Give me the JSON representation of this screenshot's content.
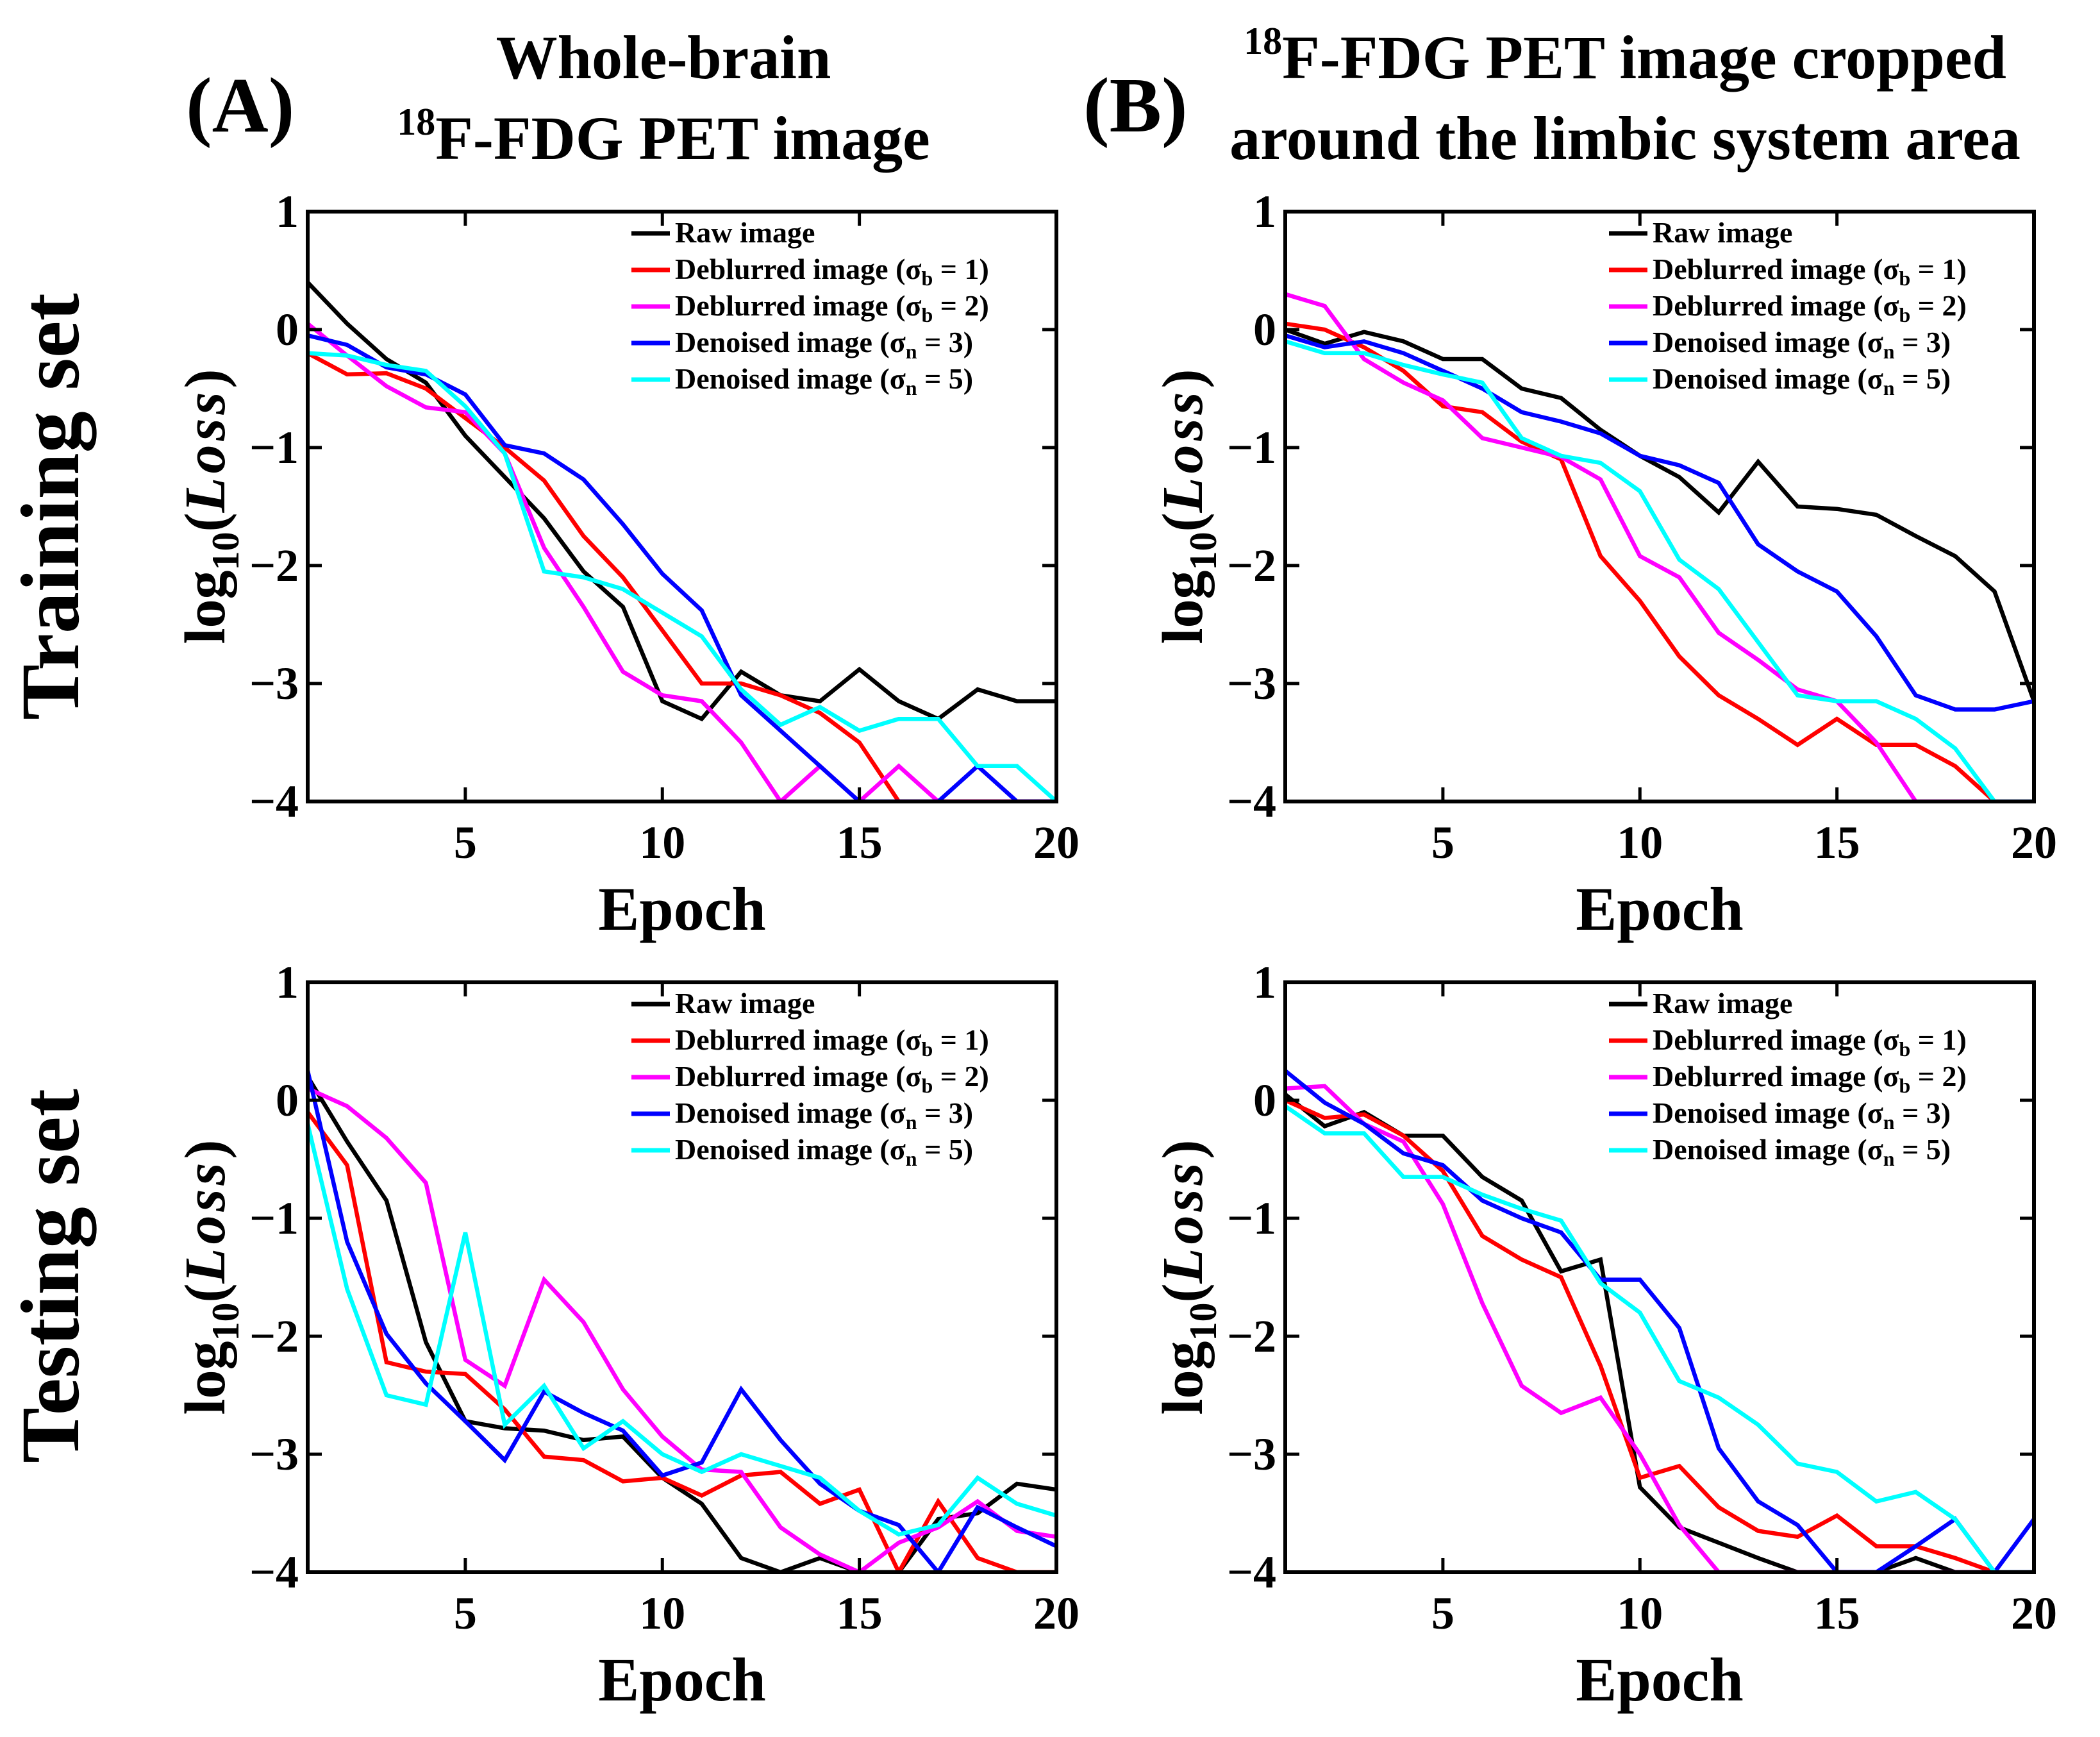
{
  "labels": {
    "panel_a": "(A)",
    "panel_b": "(B)",
    "col_a_line1": "Whole-brain",
    "col_a_sup": "18",
    "col_a_line2": "F-FDG PET image",
    "col_b_sup": "18",
    "col_b_line1": "F-FDG PET image cropped",
    "col_b_line2": "around the limbic system area",
    "row_training": "Training set",
    "row_testing": "Testing set"
  },
  "series_styles": [
    {
      "name": "Raw image",
      "color": "#000000"
    },
    {
      "name": "Deblurred image",
      "color": "#ff0000"
    },
    {
      "name": "Deblurred image",
      "color": "#ff00ff"
    },
    {
      "name": "Denoised image",
      "color": "#0000ff"
    },
    {
      "name": "Denoised image",
      "color": "#00ffff"
    }
  ],
  "chart_data": [
    {
      "id": "A-training",
      "type": "line",
      "title": "",
      "xlabel": "Epoch",
      "ylabel": "log10(Loss)",
      "xlim": [
        1,
        20
      ],
      "ylim": [
        -4,
        1
      ],
      "xticks": [
        5,
        10,
        15,
        20
      ],
      "yticks": [
        1,
        0,
        -1,
        -2,
        -3,
        -4
      ],
      "legend": [
        {
          "text": "Raw image",
          "sym": "",
          "sub": "",
          "suffix": ""
        },
        {
          "text": "Deblurred image (",
          "sym": "σ",
          "sub": "b",
          "suffix": " = 1)"
        },
        {
          "text": "Deblurred image (",
          "sym": "σ",
          "sub": "b",
          "suffix": " = 2)"
        },
        {
          "text": "Denoised image (",
          "sym": "σ",
          "sub": "n",
          "suffix": " = 3)"
        },
        {
          "text": "Denoised image (",
          "sym": "σ",
          "sub": "n",
          "suffix": " = 5)"
        }
      ],
      "x": [
        1,
        2,
        3,
        4,
        5,
        6,
        7,
        8,
        9,
        10,
        11,
        12,
        13,
        14,
        15,
        16,
        17,
        18,
        19,
        20
      ],
      "series": [
        {
          "name": "Raw image",
          "values": [
            0.4,
            0.05,
            -0.25,
            -0.45,
            -0.9,
            -1.25,
            -1.6,
            -2.05,
            -2.35,
            -3.15,
            -3.3,
            -2.9,
            -3.1,
            -3.15,
            -2.88,
            -3.15,
            -3.3,
            -3.05,
            -3.15,
            -3.15
          ]
        },
        {
          "name": "Deblurred image (σb = 1)",
          "values": [
            -0.2,
            -0.38,
            -0.37,
            -0.5,
            -0.75,
            -1.0,
            -1.28,
            -1.75,
            -2.1,
            -2.55,
            -3.0,
            -3.0,
            -3.1,
            -3.25,
            -3.5,
            -4.0,
            -4.0,
            -4.0,
            -4.0,
            -4.0
          ]
        },
        {
          "name": "Deblurred image (σb = 2)",
          "values": [
            0.05,
            -0.22,
            -0.48,
            -0.66,
            -0.7,
            -1.05,
            -1.85,
            -2.35,
            -2.9,
            -3.1,
            -3.15,
            -3.5,
            -4.0,
            -3.7,
            -4.0,
            -3.7,
            -4.0,
            -4.0,
            -4.0,
            -4.0
          ]
        },
        {
          "name": "Denoised image (σn = 3)",
          "values": [
            -0.05,
            -0.13,
            -0.32,
            -0.38,
            -0.55,
            -0.98,
            -1.05,
            -1.27,
            -1.65,
            -2.07,
            -2.38,
            -3.1,
            -3.4,
            -3.7,
            -4.0,
            -4.0,
            -4.0,
            -3.7,
            -4.0,
            -4.0
          ]
        },
        {
          "name": "Denoised image (σn = 5)",
          "values": [
            -0.2,
            -0.22,
            -0.3,
            -0.35,
            -0.65,
            -1.05,
            -2.05,
            -2.1,
            -2.2,
            -2.4,
            -2.6,
            -3.05,
            -3.35,
            -3.2,
            -3.4,
            -3.3,
            -3.3,
            -3.7,
            -3.7,
            -4.0
          ]
        }
      ]
    },
    {
      "id": "B-training",
      "type": "line",
      "title": "",
      "xlabel": "Epoch",
      "ylabel": "log10(Loss)",
      "xlim": [
        1,
        20
      ],
      "ylim": [
        -4,
        1
      ],
      "xticks": [
        5,
        10,
        15,
        20
      ],
      "yticks": [
        1,
        0,
        -1,
        -2,
        -3,
        -4
      ],
      "legend": [
        {
          "text": "Raw image",
          "sym": "",
          "sub": "",
          "suffix": ""
        },
        {
          "text": "Deblurred image (",
          "sym": "σ",
          "sub": "b",
          "suffix": " = 1)"
        },
        {
          "text": "Deblurred image (",
          "sym": "σ",
          "sub": "b",
          "suffix": " = 2)"
        },
        {
          "text": "Denoised image (",
          "sym": "σ",
          "sub": "n",
          "suffix": " = 3)"
        },
        {
          "text": "Denoised image (",
          "sym": "σ",
          "sub": "n",
          "suffix": " = 5)"
        }
      ],
      "x": [
        1,
        2,
        3,
        4,
        5,
        6,
        7,
        8,
        9,
        10,
        11,
        12,
        13,
        14,
        15,
        16,
        17,
        18,
        19,
        20
      ],
      "series": [
        {
          "name": "Raw image",
          "values": [
            0.0,
            -0.12,
            -0.02,
            -0.1,
            -0.25,
            -0.25,
            -0.5,
            -0.58,
            -0.85,
            -1.07,
            -1.25,
            -1.55,
            -1.12,
            -1.5,
            -1.52,
            -1.57,
            -1.75,
            -1.92,
            -2.22,
            -3.15
          ]
        },
        {
          "name": "Deblurred image (σb = 1)",
          "values": [
            0.05,
            0.0,
            -0.15,
            -0.35,
            -0.65,
            -0.7,
            -0.95,
            -1.1,
            -1.92,
            -2.3,
            -2.77,
            -3.1,
            -3.3,
            -3.52,
            -3.3,
            -3.52,
            -3.52,
            -3.7,
            -4.0,
            -4.0
          ]
        },
        {
          "name": "Deblurred image (σb = 2)",
          "values": [
            0.3,
            0.2,
            -0.25,
            -0.45,
            -0.6,
            -0.92,
            -1.0,
            -1.08,
            -1.27,
            -1.92,
            -2.1,
            -2.57,
            -2.8,
            -3.05,
            -3.15,
            -3.5,
            -4.0,
            -4.0,
            -4.0,
            -4.0
          ]
        },
        {
          "name": "Denoised image (σn = 3)",
          "values": [
            -0.05,
            -0.15,
            -0.1,
            -0.2,
            -0.35,
            -0.5,
            -0.7,
            -0.78,
            -0.88,
            -1.07,
            -1.15,
            -1.3,
            -1.82,
            -2.05,
            -2.22,
            -2.6,
            -3.1,
            -3.22,
            -3.22,
            -3.15
          ]
        },
        {
          "name": "Denoised image (σn = 5)",
          "values": [
            -0.1,
            -0.2,
            -0.2,
            -0.3,
            -0.38,
            -0.45,
            -0.92,
            -1.07,
            -1.13,
            -1.37,
            -1.95,
            -2.2,
            -2.65,
            -3.1,
            -3.15,
            -3.15,
            -3.3,
            -3.55,
            -4.0,
            -4.0
          ]
        }
      ]
    },
    {
      "id": "A-testing",
      "type": "line",
      "title": "",
      "xlabel": "Epoch",
      "ylabel": "log10(Loss)",
      "xlim": [
        1,
        20
      ],
      "ylim": [
        -4,
        1
      ],
      "xticks": [
        5,
        10,
        15,
        20
      ],
      "yticks": [
        1,
        0,
        -1,
        -2,
        -3,
        -4
      ],
      "legend": [
        {
          "text": "Raw image",
          "sym": "",
          "sub": "",
          "suffix": ""
        },
        {
          "text": "Deblurred image (",
          "sym": "σ",
          "sub": "b",
          "suffix": " = 1)"
        },
        {
          "text": "Deblurred image (",
          "sym": "σ",
          "sub": "b",
          "suffix": " = 2)"
        },
        {
          "text": "Denoised image (",
          "sym": "σ",
          "sub": "n",
          "suffix": " = 3)"
        },
        {
          "text": "Denoised image (",
          "sym": "σ",
          "sub": "n",
          "suffix": " = 5)"
        }
      ],
      "x": [
        1,
        2,
        3,
        4,
        5,
        6,
        7,
        8,
        9,
        10,
        11,
        12,
        13,
        14,
        15,
        16,
        17,
        18,
        19,
        20
      ],
      "series": [
        {
          "name": "Raw image",
          "values": [
            0.2,
            -0.35,
            -0.85,
            -2.05,
            -2.72,
            -2.78,
            -2.8,
            -2.88,
            -2.85,
            -3.2,
            -3.42,
            -3.88,
            -4.0,
            -3.88,
            -4.0,
            -4.0,
            -3.55,
            -3.5,
            -3.25,
            -3.3
          ]
        },
        {
          "name": "Deblurred image (σb = 1)",
          "values": [
            -0.1,
            -0.55,
            -2.22,
            -2.3,
            -2.32,
            -2.62,
            -3.02,
            -3.05,
            -3.23,
            -3.2,
            -3.35,
            -3.18,
            -3.15,
            -3.42,
            -3.3,
            -4.0,
            -3.4,
            -3.88,
            -4.0,
            -4.0
          ]
        },
        {
          "name": "Deblurred image (σb = 2)",
          "values": [
            0.1,
            -0.05,
            -0.32,
            -0.7,
            -2.2,
            -2.42,
            -1.52,
            -1.88,
            -2.45,
            -2.85,
            -3.13,
            -3.15,
            -3.62,
            -3.85,
            -4.0,
            -3.75,
            -3.62,
            -3.4,
            -3.65,
            -3.7
          ]
        },
        {
          "name": "Denoised image (σn = 3)",
          "values": [
            0.25,
            -1.2,
            -1.98,
            -2.4,
            -2.72,
            -3.05,
            -2.47,
            -2.65,
            -2.8,
            -3.18,
            -3.07,
            -2.45,
            -2.88,
            -3.25,
            -3.48,
            -3.6,
            -4.0,
            -3.45,
            -3.62,
            -3.78
          ]
        },
        {
          "name": "Denoised image (σn = 5)",
          "values": [
            -0.2,
            -1.6,
            -2.5,
            -2.58,
            -1.12,
            -2.75,
            -2.42,
            -2.95,
            -2.72,
            -3.0,
            -3.15,
            -3.0,
            -3.1,
            -3.2,
            -3.48,
            -3.68,
            -3.6,
            -3.2,
            -3.42,
            -3.52
          ]
        }
      ]
    },
    {
      "id": "B-testing",
      "type": "line",
      "title": "",
      "xlabel": "Epoch",
      "ylabel": "log10(Loss)",
      "xlim": [
        1,
        20
      ],
      "ylim": [
        -4,
        1
      ],
      "xticks": [
        5,
        10,
        15,
        20
      ],
      "yticks": [
        1,
        0,
        -1,
        -2,
        -3,
        -4
      ],
      "legend": [
        {
          "text": "Raw image",
          "sym": "",
          "sub": "",
          "suffix": ""
        },
        {
          "text": "Deblurred image (",
          "sym": "σ",
          "sub": "b",
          "suffix": " = 1)"
        },
        {
          "text": "Deblurred image (",
          "sym": "σ",
          "sub": "b",
          "suffix": " = 2)"
        },
        {
          "text": "Denoised image (",
          "sym": "σ",
          "sub": "n",
          "suffix": " = 3)"
        },
        {
          "text": "Denoised image (",
          "sym": "σ",
          "sub": "n",
          "suffix": " = 5)"
        }
      ],
      "x": [
        1,
        2,
        3,
        4,
        5,
        6,
        7,
        8,
        9,
        10,
        11,
        12,
        13,
        14,
        15,
        16,
        17,
        18,
        19,
        20
      ],
      "series": [
        {
          "name": "Raw image",
          "values": [
            0.05,
            -0.22,
            -0.1,
            -0.3,
            -0.3,
            -0.65,
            -0.85,
            -1.45,
            -1.35,
            -3.28,
            -3.62,
            -3.75,
            -3.88,
            -4.0,
            -4.0,
            -4.0,
            -3.88,
            -4.0,
            -4.0,
            -4.0
          ]
        },
        {
          "name": "Deblurred image (σb = 1)",
          "values": [
            0.0,
            -0.15,
            -0.12,
            -0.3,
            -0.6,
            -1.15,
            -1.35,
            -1.5,
            -2.25,
            -3.2,
            -3.1,
            -3.45,
            -3.65,
            -3.7,
            -3.52,
            -3.78,
            -3.78,
            -3.88,
            -4.0,
            -4.0
          ]
        },
        {
          "name": "Deblurred image (σb = 2)",
          "values": [
            0.1,
            0.12,
            -0.2,
            -0.35,
            -0.88,
            -1.72,
            -2.42,
            -2.65,
            -2.52,
            -3.0,
            -3.6,
            -4.0,
            -4.0,
            -4.0,
            -4.0,
            -4.0,
            -4.0,
            -4.0,
            -4.0,
            -4.0
          ]
        },
        {
          "name": "Denoised image (σn = 3)",
          "values": [
            0.25,
            -0.02,
            -0.2,
            -0.45,
            -0.55,
            -0.85,
            -1.0,
            -1.12,
            -1.52,
            -1.52,
            -1.93,
            -2.95,
            -3.4,
            -3.6,
            -4.0,
            -4.0,
            -3.78,
            -3.55,
            -4.0,
            -3.55
          ]
        },
        {
          "name": "Denoised image (σn = 5)",
          "values": [
            -0.05,
            -0.28,
            -0.28,
            -0.65,
            -0.65,
            -0.8,
            -0.92,
            -1.02,
            -1.55,
            -1.8,
            -2.38,
            -2.52,
            -2.75,
            -3.08,
            -3.15,
            -3.4,
            -3.32,
            -3.55,
            -4.0,
            -4.0
          ]
        }
      ]
    }
  ]
}
